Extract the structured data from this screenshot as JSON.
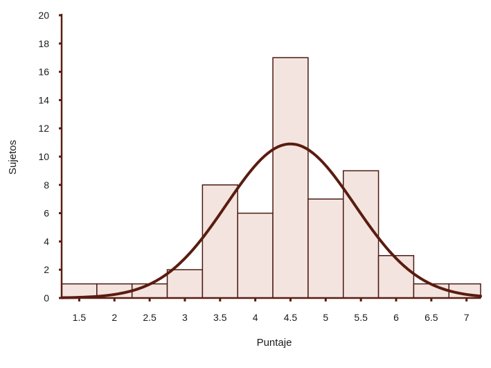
{
  "chart_data": {
    "type": "bar",
    "subtype": "histogram-with-normal-curve",
    "xlabel": "Puntaje",
    "ylabel": "Sujetos",
    "x_ticks": [
      "1.5",
      "2",
      "2.5",
      "3",
      "3.5",
      "4",
      "4.5",
      "5",
      "5.5",
      "6",
      "6.5",
      "7"
    ],
    "y_ticks": [
      "0",
      "2",
      "4",
      "6",
      "8",
      "10",
      "12",
      "14",
      "16",
      "18",
      "20"
    ],
    "ylim": [
      0,
      20
    ],
    "xlim": [
      1.25,
      7.2
    ],
    "bins": [
      {
        "x0": 1.25,
        "x1": 1.75,
        "value": 1
      },
      {
        "x0": 1.75,
        "x1": 2.25,
        "value": 1
      },
      {
        "x0": 2.25,
        "x1": 2.75,
        "value": 1
      },
      {
        "x0": 2.75,
        "x1": 3.25,
        "value": 2
      },
      {
        "x0": 3.25,
        "x1": 3.75,
        "value": 8
      },
      {
        "x0": 3.75,
        "x1": 4.25,
        "value": 6
      },
      {
        "x0": 4.25,
        "x1": 4.75,
        "value": 17
      },
      {
        "x0": 4.75,
        "x1": 5.25,
        "value": 7
      },
      {
        "x0": 5.25,
        "x1": 5.75,
        "value": 9
      },
      {
        "x0": 5.75,
        "x1": 6.25,
        "value": 3
      },
      {
        "x0": 6.25,
        "x1": 6.75,
        "value": 1
      },
      {
        "x0": 6.75,
        "x1": 7.2,
        "value": 1
      }
    ],
    "normal_curve": {
      "mean": 4.5,
      "sd": 0.91,
      "peak": 10.9
    },
    "colors": {
      "bar_fill": "#f3e4df",
      "bar_stroke": "#4a1a12",
      "curve": "#5a1c10",
      "axis": "#5a1c10"
    }
  }
}
